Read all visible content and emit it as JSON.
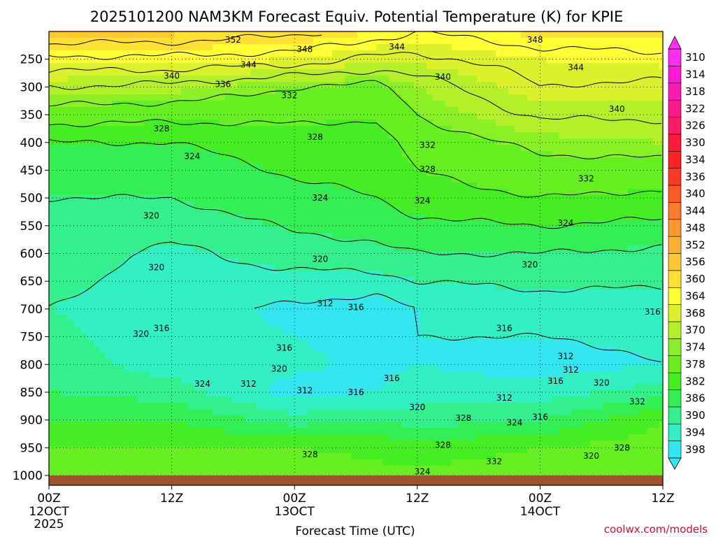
{
  "chart_data": {
    "type": "heatmap",
    "title": "2025101200 NAM3KM Forecast Equiv. Potential Temperature (K) for KPIE",
    "xlabel": "Forecast Time (UTC)",
    "ylabel": "",
    "credit": "coolwx.com/models",
    "x_ticks": [
      {
        "hour": 0,
        "label": "00Z",
        "sub1": "12OCT",
        "sub2": "2025"
      },
      {
        "hour": 12,
        "label": "12Z",
        "sub1": "",
        "sub2": ""
      },
      {
        "hour": 24,
        "label": "00Z",
        "sub1": "13OCT",
        "sub2": ""
      },
      {
        "hour": 36,
        "label": "12Z",
        "sub1": "",
        "sub2": ""
      },
      {
        "hour": 48,
        "label": "00Z",
        "sub1": "14OCT",
        "sub2": ""
      },
      {
        "hour": 60,
        "label": "12Z",
        "sub1": "",
        "sub2": ""
      }
    ],
    "xlim": [
      0,
      60
    ],
    "y_ticks": [
      250,
      300,
      350,
      400,
      450,
      500,
      550,
      600,
      650,
      700,
      750,
      800,
      850,
      900,
      950,
      1000
    ],
    "ylim": [
      200,
      1000
    ],
    "colorbar_levels": [
      310,
      314,
      318,
      322,
      326,
      330,
      334,
      336,
      340,
      344,
      348,
      352,
      356,
      360,
      364,
      368,
      370,
      374,
      378,
      382,
      386,
      390,
      394,
      398
    ],
    "colorbar_colors": [
      "#33e6f0",
      "#33f0c4",
      "#33f08c",
      "#33ee55",
      "#44ee22",
      "#66f022",
      "#8cf026",
      "#b4f02a",
      "#dcf02c",
      "#ffff33",
      "#ffe033",
      "#ffc833",
      "#ffb033",
      "#ff9830",
      "#ff7a2a",
      "#ff5a24",
      "#ff3a22",
      "#ff2222",
      "#ff1a3a",
      "#ff1a66",
      "#ff1a8c",
      "#ff1ab4",
      "#ff1ad8",
      "#ff2ef0"
    ],
    "grid": true,
    "terrain_color": "#a0522d",
    "profiles": [
      {
        "hour": 0,
        "values": [
          [
            200,
            354
          ],
          [
            250,
            345
          ],
          [
            300,
            338
          ],
          [
            400,
            326
          ],
          [
            500,
            322
          ],
          [
            600,
            320
          ],
          [
            700,
            318
          ],
          [
            800,
            320
          ],
          [
            850,
            322
          ],
          [
            900,
            326
          ],
          [
            950,
            330
          ],
          [
            1000,
            332
          ]
        ]
      },
      {
        "hour": 12,
        "values": [
          [
            200,
            353
          ],
          [
            250,
            345
          ],
          [
            300,
            337
          ],
          [
            400,
            326
          ],
          [
            500,
            322
          ],
          [
            600,
            317
          ],
          [
            700,
            316
          ],
          [
            800,
            316
          ],
          [
            850,
            320
          ],
          [
            900,
            326
          ],
          [
            950,
            330
          ],
          [
            1000,
            332
          ]
        ]
      },
      {
        "hour": 24,
        "values": [
          [
            200,
            351
          ],
          [
            250,
            344
          ],
          [
            300,
            334
          ],
          [
            400,
            328
          ],
          [
            500,
            325
          ],
          [
            600,
            320
          ],
          [
            700,
            313
          ],
          [
            800,
            315
          ],
          [
            850,
            312
          ],
          [
            900,
            320
          ],
          [
            950,
            330
          ],
          [
            1000,
            333
          ]
        ]
      },
      {
        "hour": 32,
        "values": [
          [
            200,
            348
          ],
          [
            250,
            341
          ],
          [
            300,
            333
          ],
          [
            400,
            328
          ],
          [
            500,
            326
          ],
          [
            600,
            321
          ],
          [
            700,
            312
          ],
          [
            800,
            313
          ],
          [
            850,
            314
          ],
          [
            900,
            322
          ],
          [
            950,
            329
          ],
          [
            1000,
            331
          ]
        ]
      },
      {
        "hour": 36,
        "values": [
          [
            200,
            346
          ],
          [
            250,
            341
          ],
          [
            300,
            336
          ],
          [
            400,
            332
          ],
          [
            500,
            328
          ],
          [
            600,
            322
          ],
          [
            700,
            314
          ],
          [
            800,
            314
          ],
          [
            850,
            316
          ],
          [
            900,
            320
          ],
          [
            950,
            328
          ],
          [
            1000,
            331
          ]
        ]
      },
      {
        "hour": 48,
        "values": [
          [
            200,
            349
          ],
          [
            250,
            344
          ],
          [
            300,
            342
          ],
          [
            400,
            335
          ],
          [
            500,
            330
          ],
          [
            600,
            322
          ],
          [
            700,
            316
          ],
          [
            800,
            312
          ],
          [
            850,
            316
          ],
          [
            900,
            322
          ],
          [
            950,
            330
          ],
          [
            1000,
            332
          ]
        ]
      },
      {
        "hour": 60,
        "values": [
          [
            200,
            349
          ],
          [
            250,
            345
          ],
          [
            300,
            341
          ],
          [
            400,
            336
          ],
          [
            500,
            329
          ],
          [
            600,
            321
          ],
          [
            700,
            316
          ],
          [
            800,
            314
          ],
          [
            850,
            320
          ],
          [
            900,
            330
          ],
          [
            950,
            332
          ],
          [
            1000,
            333
          ]
        ]
      }
    ],
    "contour_labels": [
      {
        "hour": 18.0,
        "p": 215,
        "text": "352"
      },
      {
        "hour": 25.0,
        "p": 232,
        "text": "348"
      },
      {
        "hour": 47.5,
        "p": 215,
        "text": "348"
      },
      {
        "hour": 34.0,
        "p": 228,
        "text": "344"
      },
      {
        "hour": 19.5,
        "p": 260,
        "text": "344"
      },
      {
        "hour": 51.5,
        "p": 265,
        "text": "344"
      },
      {
        "hour": 12.0,
        "p": 280,
        "text": "340"
      },
      {
        "hour": 38.5,
        "p": 282,
        "text": "340"
      },
      {
        "hour": 55.5,
        "p": 340,
        "text": "340"
      },
      {
        "hour": 17.0,
        "p": 295,
        "text": "336"
      },
      {
        "hour": 23.5,
        "p": 315,
        "text": "332"
      },
      {
        "hour": 11.0,
        "p": 375,
        "text": "328"
      },
      {
        "hour": 26.0,
        "p": 390,
        "text": "328"
      },
      {
        "hour": 37.0,
        "p": 405,
        "text": "332"
      },
      {
        "hour": 37.0,
        "p": 448,
        "text": "328"
      },
      {
        "hour": 52.5,
        "p": 465,
        "text": "332"
      },
      {
        "hour": 14.0,
        "p": 425,
        "text": "324"
      },
      {
        "hour": 26.5,
        "p": 500,
        "text": "324"
      },
      {
        "hour": 36.5,
        "p": 505,
        "text": "324"
      },
      {
        "hour": 50.5,
        "p": 545,
        "text": "324"
      },
      {
        "hour": 10.0,
        "p": 532,
        "text": "320"
      },
      {
        "hour": 10.5,
        "p": 625,
        "text": "320"
      },
      {
        "hour": 26.5,
        "p": 610,
        "text": "320"
      },
      {
        "hour": 47.0,
        "p": 620,
        "text": "320"
      },
      {
        "hour": 27.0,
        "p": 690,
        "text": "312"
      },
      {
        "hour": 30.0,
        "p": 697,
        "text": "316"
      },
      {
        "hour": 11.0,
        "p": 735,
        "text": "316"
      },
      {
        "hour": 9.0,
        "p": 745,
        "text": "320"
      },
      {
        "hour": 44.5,
        "p": 735,
        "text": "316"
      },
      {
        "hour": 59.0,
        "p": 705,
        "text": "316"
      },
      {
        "hour": 23.0,
        "p": 770,
        "text": "316"
      },
      {
        "hour": 50.5,
        "p": 785,
        "text": "312"
      },
      {
        "hour": 22.5,
        "p": 808,
        "text": "320"
      },
      {
        "hour": 19.5,
        "p": 835,
        "text": "312"
      },
      {
        "hour": 15.0,
        "p": 835,
        "text": "324"
      },
      {
        "hour": 25.0,
        "p": 847,
        "text": "312"
      },
      {
        "hour": 33.5,
        "p": 825,
        "text": "316"
      },
      {
        "hour": 30.0,
        "p": 850,
        "text": "316"
      },
      {
        "hour": 51.0,
        "p": 810,
        "text": "312"
      },
      {
        "hour": 49.5,
        "p": 830,
        "text": "316"
      },
      {
        "hour": 54.0,
        "p": 833,
        "text": "320"
      },
      {
        "hour": 36.0,
        "p": 877,
        "text": "320"
      },
      {
        "hour": 44.5,
        "p": 860,
        "text": "312"
      },
      {
        "hour": 40.5,
        "p": 897,
        "text": "328"
      },
      {
        "hour": 45.5,
        "p": 905,
        "text": "324"
      },
      {
        "hour": 48.0,
        "p": 895,
        "text": "316"
      },
      {
        "hour": 57.5,
        "p": 867,
        "text": "332"
      },
      {
        "hour": 25.5,
        "p": 962,
        "text": "328"
      },
      {
        "hour": 38.5,
        "p": 945,
        "text": "328"
      },
      {
        "hour": 36.5,
        "p": 993,
        "text": "324"
      },
      {
        "hour": 43.5,
        "p": 975,
        "text": "332"
      },
      {
        "hour": 53.0,
        "p": 965,
        "text": "320"
      },
      {
        "hour": 56.0,
        "p": 950,
        "text": "328"
      }
    ]
  }
}
